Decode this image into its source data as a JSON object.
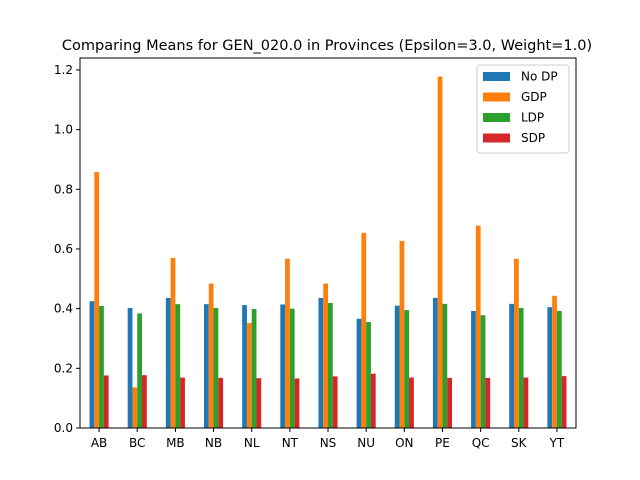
{
  "chart_data": {
    "type": "bar",
    "title": "Comparing Means for GEN_020.0 in Provinces (Epsilon=3.0, Weight=1.0)",
    "xlabel": "",
    "ylabel": "",
    "categories": [
      "AB",
      "BC",
      "MB",
      "NB",
      "NL",
      "NT",
      "NS",
      "NU",
      "ON",
      "PE",
      "QC",
      "SK",
      "YT"
    ],
    "ylim": [
      0,
      1.24
    ],
    "yticks": [
      0.0,
      0.2,
      0.4,
      0.6,
      0.8,
      1.0,
      1.2
    ],
    "ytick_labels": [
      "0.0",
      "0.2",
      "0.4",
      "0.6",
      "0.8",
      "1.0",
      "1.2"
    ],
    "grid": false,
    "legend_position": "upper-right",
    "series": [
      {
        "name": "No DP",
        "color": "#1f77b4",
        "values": [
          0.425,
          0.402,
          0.436,
          0.415,
          0.412,
          0.414,
          0.436,
          0.366,
          0.41,
          0.436,
          0.392,
          0.416,
          0.405
        ]
      },
      {
        "name": "GDP",
        "color": "#ff7f0e",
        "values": [
          0.858,
          0.136,
          0.57,
          0.484,
          0.352,
          0.567,
          0.484,
          0.654,
          0.627,
          1.178,
          0.678,
          0.567,
          0.443
        ]
      },
      {
        "name": "LDP",
        "color": "#2ca02c",
        "values": [
          0.409,
          0.384,
          0.415,
          0.402,
          0.399,
          0.4,
          0.419,
          0.355,
          0.395,
          0.416,
          0.378,
          0.402,
          0.392
        ]
      },
      {
        "name": "SDP",
        "color": "#d62728",
        "values": [
          0.176,
          0.177,
          0.169,
          0.168,
          0.167,
          0.166,
          0.173,
          0.182,
          0.169,
          0.168,
          0.168,
          0.169,
          0.174
        ]
      }
    ]
  }
}
